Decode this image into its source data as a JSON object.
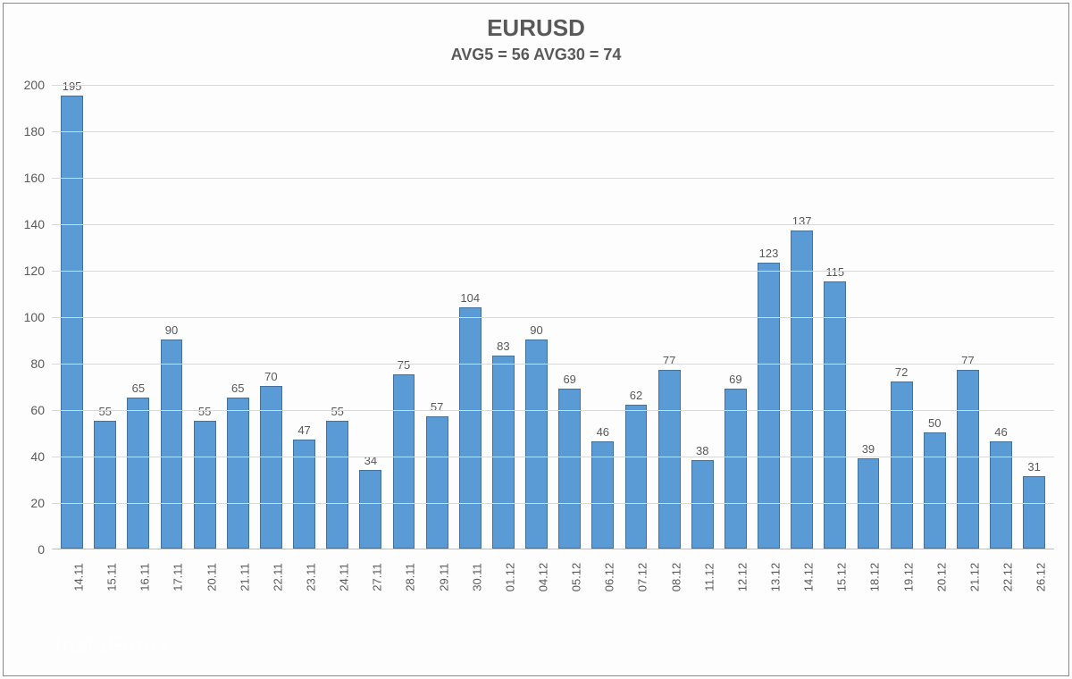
{
  "chart": {
    "type": "bar",
    "title": "EURUSD",
    "title_fontsize": 26,
    "subtitle": "AVG5 = 56 AVG30 = 74",
    "subtitle_fontsize": 18,
    "title_color": "#595959",
    "categories": [
      "14.11",
      "15.11",
      "16.11",
      "17.11",
      "20.11",
      "21.11",
      "22.11",
      "23.11",
      "24.11",
      "27.11",
      "28.11",
      "29.11",
      "30.11",
      "01.12",
      "04.12",
      "05.12",
      "06.12",
      "07.12",
      "08.12",
      "11.12",
      "12.12",
      "13.12",
      "14.12",
      "15.12",
      "18.12",
      "19.12",
      "20.12",
      "21.12",
      "22.12",
      "26.12"
    ],
    "values": [
      195,
      55,
      65,
      90,
      55,
      65,
      70,
      47,
      55,
      34,
      75,
      57,
      104,
      83,
      90,
      69,
      46,
      62,
      77,
      38,
      69,
      123,
      137,
      115,
      39,
      72,
      50,
      77,
      46,
      31
    ],
    "bar_fill_color": "#5b9bd5",
    "bar_border_color": "#41719c",
    "data_label_color": "#595959",
    "data_label_fontsize": 13,
    "ylim": [
      0,
      200
    ],
    "ytick_step": 20,
    "yticks": [
      0,
      20,
      40,
      60,
      80,
      100,
      120,
      140,
      160,
      180,
      200
    ],
    "axis_label_color": "#595959",
    "axis_label_fontsize": 14,
    "grid_color": "#d9d9d9",
    "axis_line_color": "#bfbfbf",
    "background_color": "#fdfdfd",
    "bar_width_ratio": 0.75,
    "x_label_rotation": -90
  },
  "watermark": {
    "brand": "InstaForex",
    "tagline": "Instant Forex Trading",
    "icon": "globe-icon"
  }
}
